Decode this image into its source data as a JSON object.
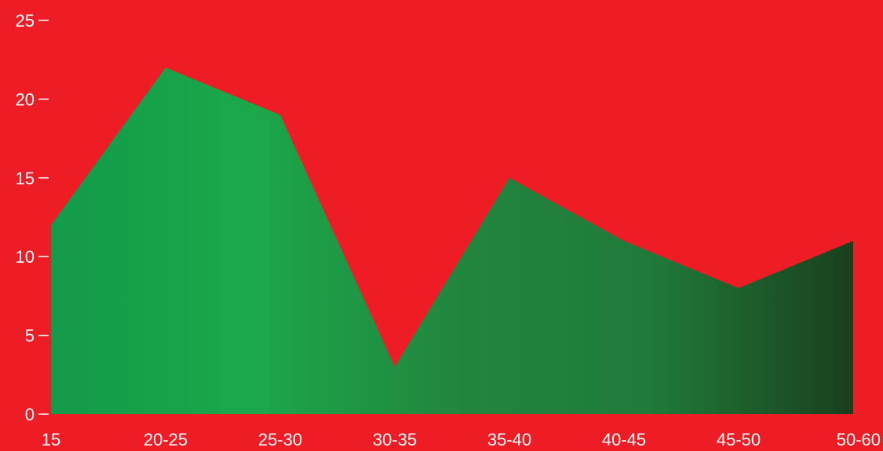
{
  "colors": {
    "background": "#ee1c25",
    "text": "#ffffff",
    "tick": "#ffffff",
    "area_gradient": [
      "#139a4a",
      "#1ba84a",
      "#22863e",
      "#1f7a3a",
      "#1a3f1c"
    ]
  },
  "chart_data": {
    "type": "area",
    "title": "",
    "xlabel": "",
    "ylabel": "",
    "categories": [
      "15",
      "20-25",
      "25-30",
      "30-35",
      "35-40",
      "40-45",
      "45-50",
      "50-60"
    ],
    "series": [
      {
        "values": [
          12,
          22,
          19,
          3,
          15,
          11,
          8,
          11
        ]
      }
    ],
    "ylim": [
      0,
      25
    ],
    "yticks": [
      "0",
      "5",
      "10",
      "15",
      "20",
      "25"
    ],
    "grid": false,
    "legend": "none"
  }
}
